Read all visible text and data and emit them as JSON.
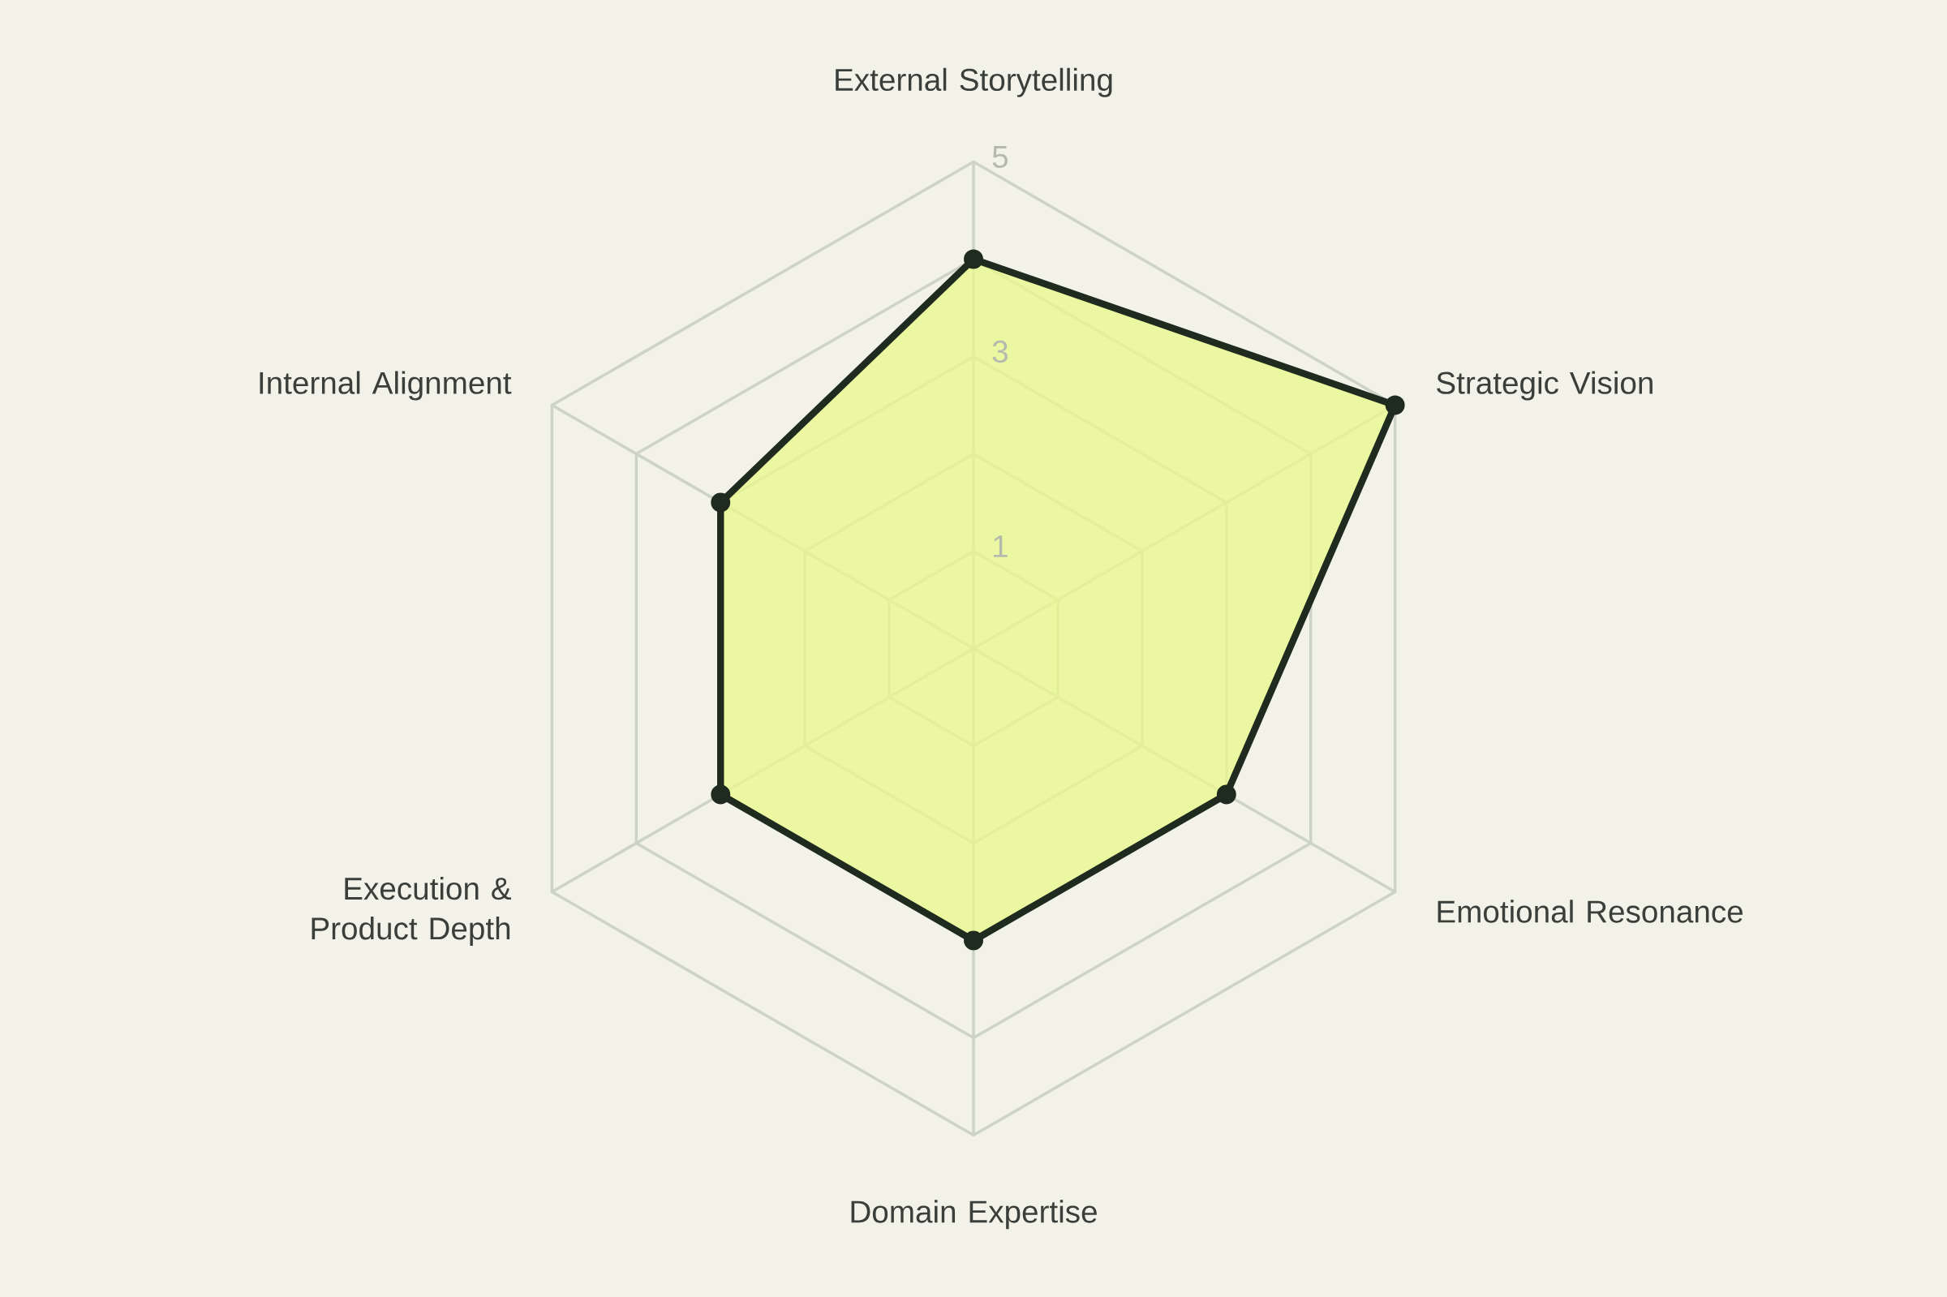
{
  "chart_data": {
    "type": "radar",
    "categories": [
      "External Storytelling",
      "Strategic Vision",
      "Emotional Resonance",
      "Domain Expertise",
      "Execution & Product Depth",
      "Internal Alignment"
    ],
    "series": [
      {
        "color": "#1f2b1f",
        "values": [
          4,
          5,
          3,
          3,
          3,
          3
        ]
      }
    ],
    "ylim": [
      0,
      5
    ],
    "yticks": [
      1,
      3,
      5
    ],
    "marker": "circle",
    "line_style": "solid",
    "grid": true
  }
}
